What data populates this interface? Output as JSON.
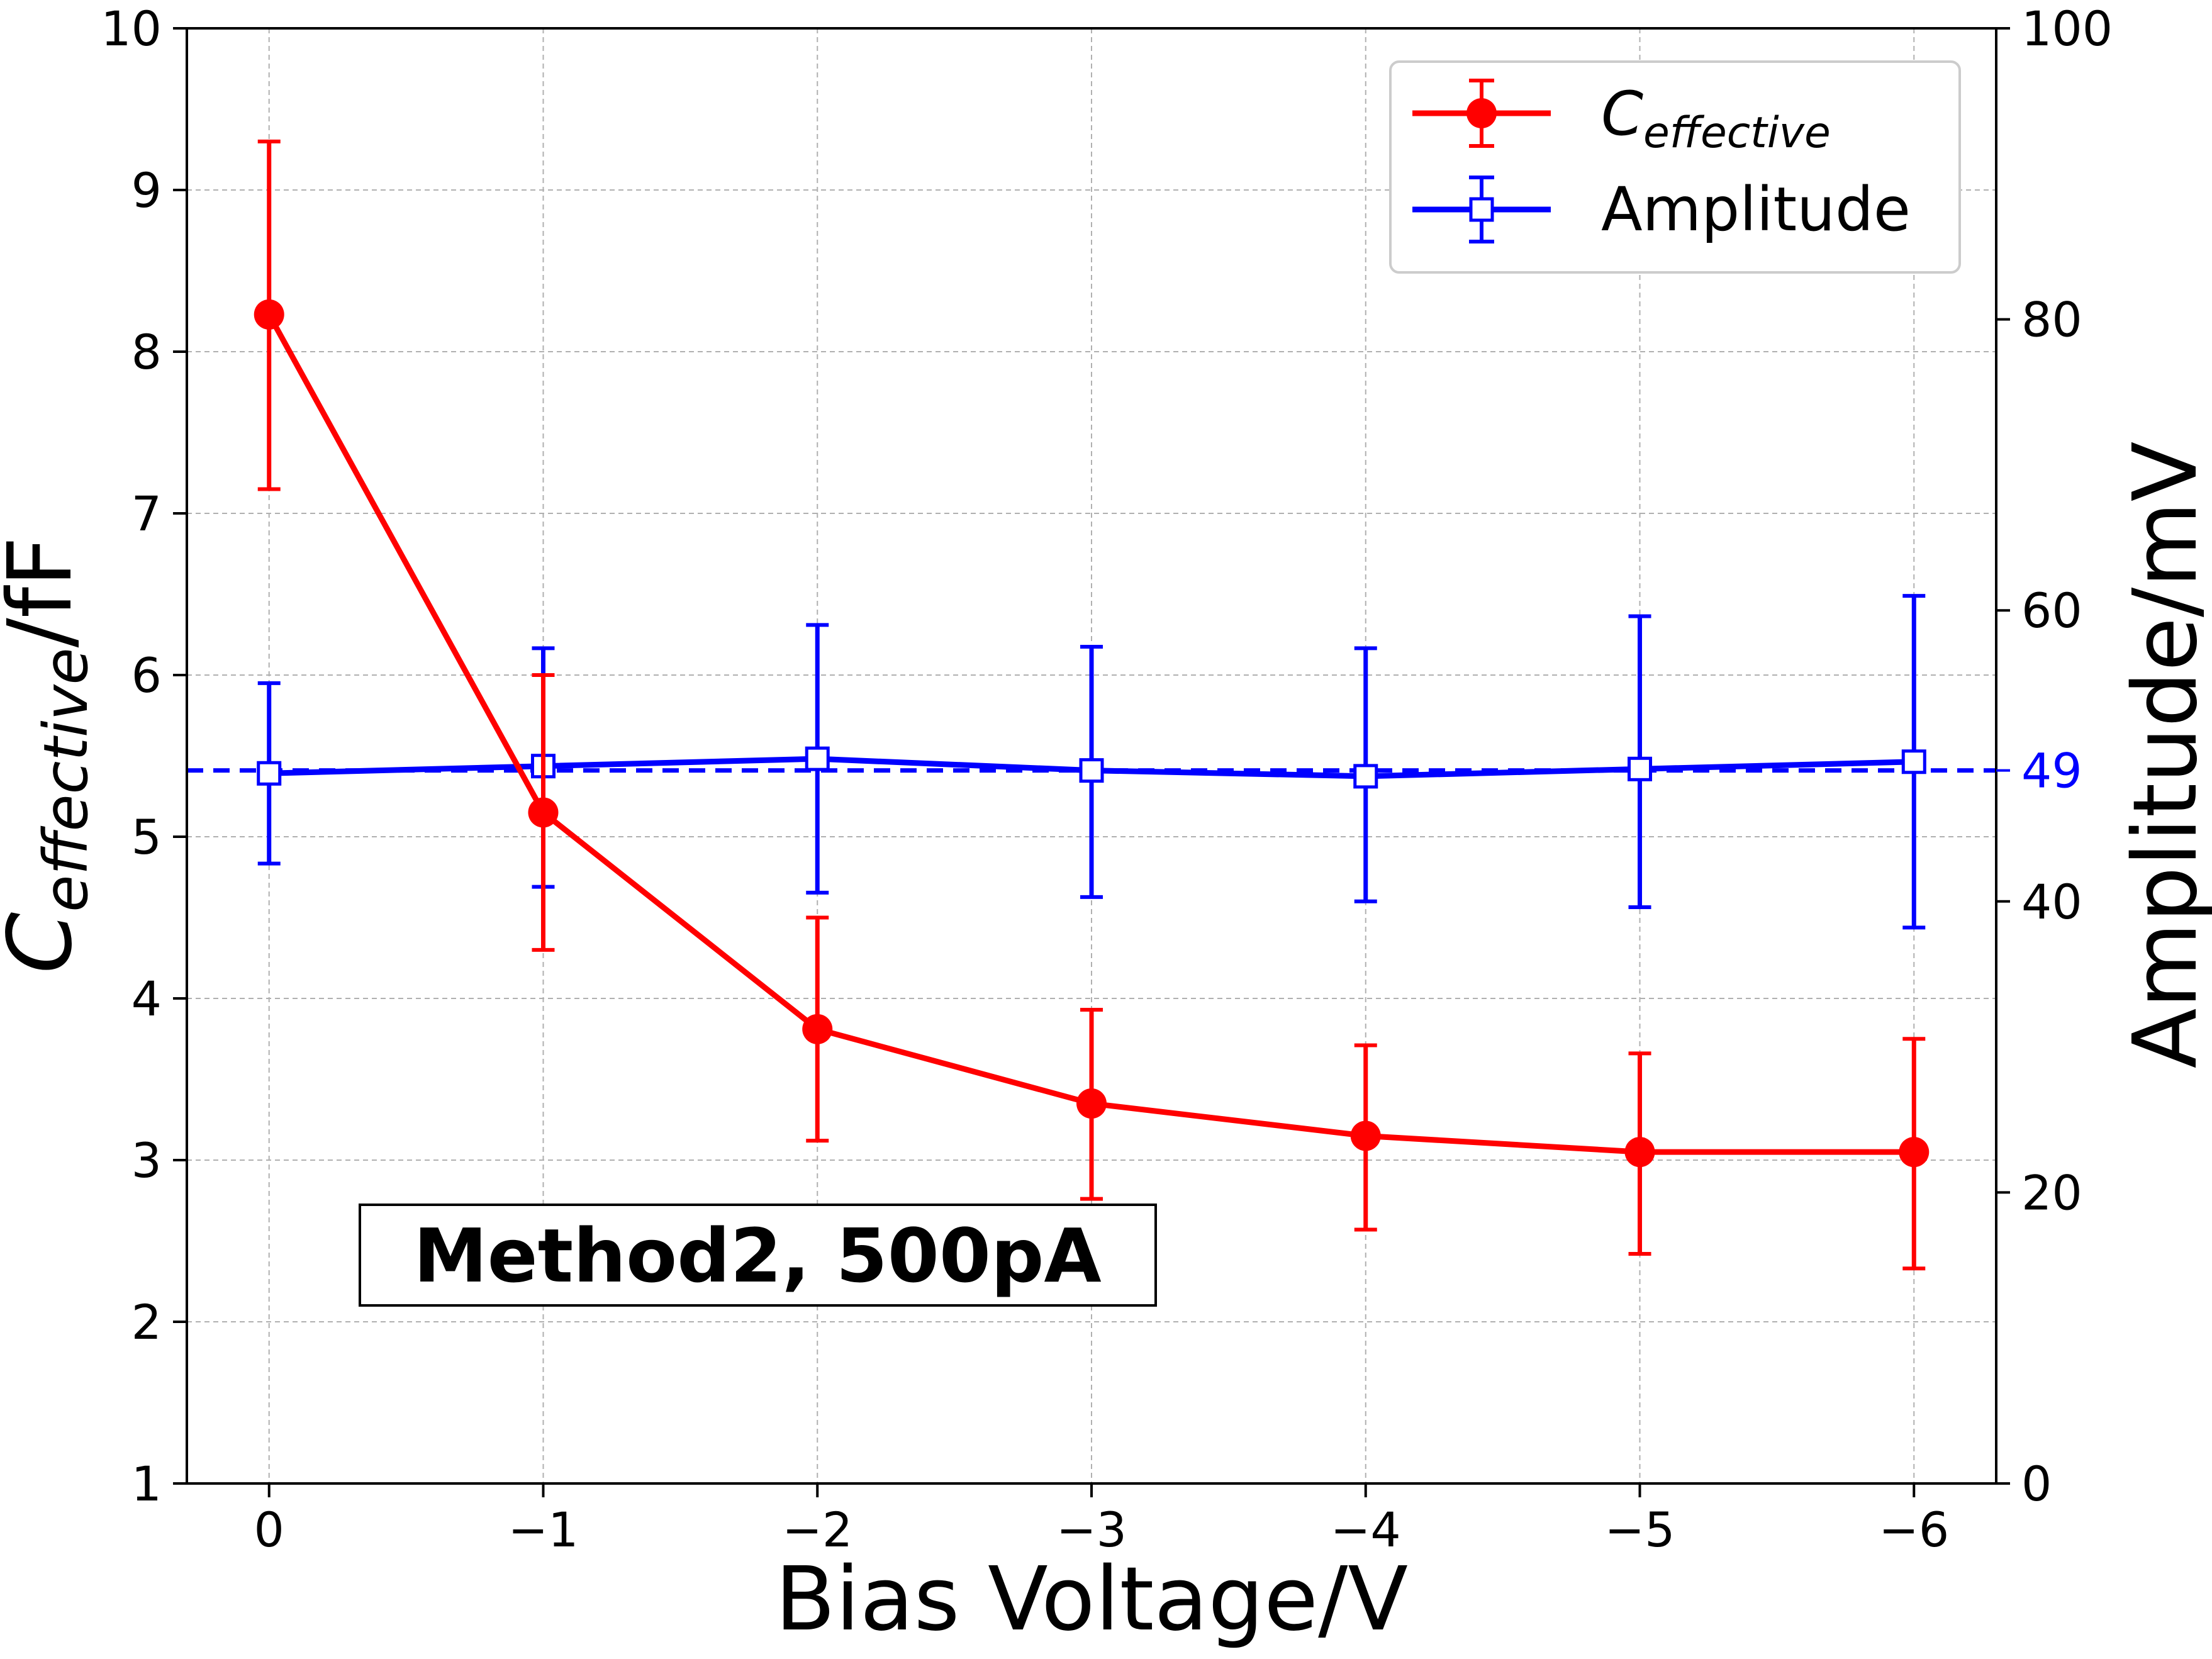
{
  "chart_data": {
    "type": "line",
    "xlabel": "Bias Voltage/V",
    "ylabel_left": {
      "main": "C",
      "sub": "effective",
      "unit": "/fF"
    },
    "ylabel_right": "Amplitude/mV",
    "annotation": "Method2, 500pA",
    "grid": true,
    "legend_position": "top-right",
    "x": [
      0,
      -1,
      -2,
      -3,
      -4,
      -5,
      -6
    ],
    "x_tick_labels": [
      "0",
      "−1",
      "−2",
      "−3",
      "−4",
      "−5",
      "−6"
    ],
    "xlim": [
      0.3,
      -6.3
    ],
    "y_left_ticks": [
      "1",
      "2",
      "3",
      "4",
      "5",
      "6",
      "7",
      "8",
      "9",
      "10"
    ],
    "ylim_left": [
      1,
      10
    ],
    "y_right_ticks": [
      "0",
      "20",
      "40",
      "60",
      "80",
      "100"
    ],
    "ylim_right": [
      0,
      100
    ],
    "reference_line": {
      "value": 49,
      "label": "49",
      "color": "#0000ff",
      "style": "dashed",
      "axis": "right"
    },
    "series": [
      {
        "name": {
          "main": "C",
          "sub": "effective"
        },
        "axis": "left",
        "color": "#ff0000",
        "marker": "filled-circle",
        "values": [
          8.23,
          5.15,
          3.81,
          3.35,
          3.15,
          3.05,
          3.05
        ],
        "err_low": [
          7.15,
          4.3,
          3.12,
          2.76,
          2.57,
          2.42,
          2.33
        ],
        "err_high": [
          9.3,
          6.0,
          4.5,
          3.93,
          3.71,
          3.66,
          3.75
        ]
      },
      {
        "name": "Amplitude",
        "axis": "right",
        "color": "#0000ff",
        "marker": "open-square",
        "values": [
          48.8,
          49.3,
          49.8,
          49.0,
          48.6,
          49.1,
          49.6
        ],
        "err_low": [
          42.6,
          41.0,
          40.6,
          40.3,
          40.0,
          39.6,
          38.2
        ],
        "err_high": [
          55.0,
          57.4,
          59.0,
          57.5,
          57.4,
          59.6,
          61.0
        ]
      }
    ]
  }
}
